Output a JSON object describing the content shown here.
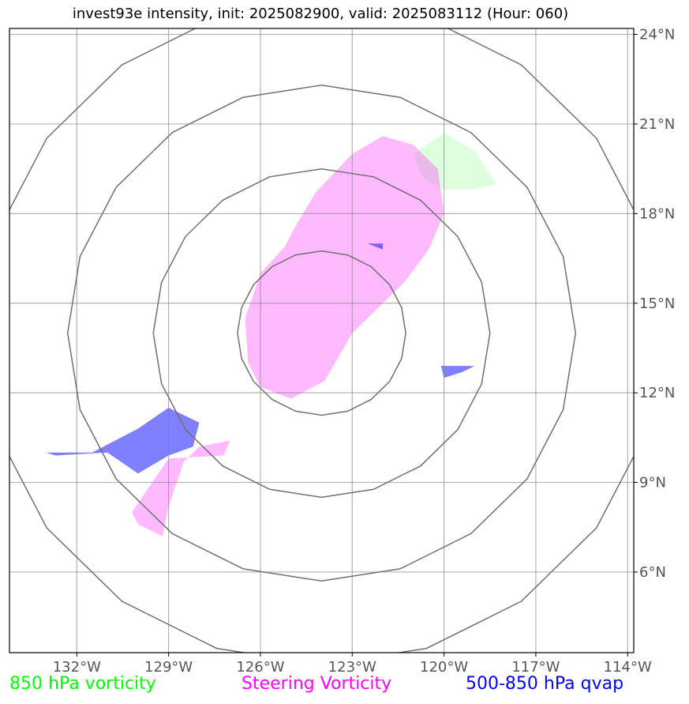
{
  "title": "invest93e intensity, init: 2025082900, valid: 2025083112 (Hour: 060)",
  "map": {
    "lon_range": [
      -134.2,
      -113.8
    ],
    "lat_range": [
      3.3,
      24.2
    ],
    "lon_ticks": [
      {
        "value": -132,
        "label": "132°W"
      },
      {
        "value": -129,
        "label": "129°W"
      },
      {
        "value": -126,
        "label": "126°W"
      },
      {
        "value": -123,
        "label": "123°W"
      },
      {
        "value": -120,
        "label": "120°W"
      },
      {
        "value": -117,
        "label": "117°W"
      },
      {
        "value": -114,
        "label": "114°W"
      }
    ],
    "lat_ticks": [
      {
        "value": 24,
        "label": "24°N"
      },
      {
        "value": 21,
        "label": "21°N"
      },
      {
        "value": 18,
        "label": "18°N"
      },
      {
        "value": 15,
        "label": "15°N"
      },
      {
        "value": 12,
        "label": "12°N"
      },
      {
        "value": 9,
        "label": "9°N"
      },
      {
        "value": 6,
        "label": "6°N"
      }
    ],
    "range_rings_center": {
      "lon": -124,
      "lat": 14
    },
    "range_ring_radii_deg": [
      2.75,
      5.5,
      8.3,
      11.1
    ],
    "fields": [
      {
        "name": "850 hPa vorticity",
        "color": "#c8ffc8",
        "polygons": [
          [
            [
              -120.0,
              20.7
            ],
            [
              -119.0,
              20.1
            ],
            [
              -118.3,
              19.0
            ],
            [
              -119.0,
              18.8
            ],
            [
              -120.0,
              18.8
            ],
            [
              -120.7,
              19.2
            ],
            [
              -121.0,
              20.0
            ]
          ],
          [
            [
              -119.1,
              12.1
            ],
            [
              -118.9,
              12.1
            ],
            [
              -119.0,
              12.0
            ]
          ]
        ]
      },
      {
        "name": "Steering Vorticity",
        "color": "#ff00ff",
        "polygons": [
          [
            [
              -122.0,
              20.6
            ],
            [
              -121.0,
              20.3
            ],
            [
              -120.2,
              19.5
            ],
            [
              -120.0,
              18.0
            ],
            [
              -120.5,
              16.8
            ],
            [
              -121.3,
              15.7
            ],
            [
              -122.0,
              15.0
            ],
            [
              -123.0,
              14.0
            ],
            [
              -123.9,
              12.4
            ],
            [
              -125.0,
              11.8
            ],
            [
              -126.0,
              12.2
            ],
            [
              -126.4,
              13.0
            ],
            [
              -126.5,
              14.5
            ],
            [
              -126.0,
              16.0
            ],
            [
              -125.2,
              16.9
            ],
            [
              -124.9,
              17.5
            ],
            [
              -124.2,
              18.7
            ],
            [
              -123.0,
              20.0
            ]
          ],
          [
            [
              -127.0,
              10.4
            ],
            [
              -128.0,
              10.2
            ],
            [
              -128.5,
              9.7
            ],
            [
              -129.0,
              8.2
            ],
            [
              -129.2,
              7.2
            ],
            [
              -130.0,
              7.6
            ],
            [
              -130.2,
              8.0
            ],
            [
              -129.0,
              9.8
            ],
            [
              -127.2,
              9.9
            ]
          ]
        ]
      },
      {
        "name": "500-850 hPa qvap",
        "color": "#0000ff",
        "polygons": [
          [
            [
              -128.0,
              11.0
            ],
            [
              -128.2,
              10.2
            ],
            [
              -129.0,
              9.9
            ],
            [
              -130.0,
              9.3
            ],
            [
              -131.0,
              10.0
            ],
            [
              -132.7,
              9.9
            ],
            [
              -133.0,
              10.0
            ],
            [
              -131.5,
              10.0
            ],
            [
              -130.0,
              10.8
            ],
            [
              -129.0,
              11.5
            ]
          ],
          [
            [
              -119.0,
              12.9
            ],
            [
              -119.4,
              12.7
            ],
            [
              -120.0,
              12.5
            ],
            [
              -120.1,
              12.9
            ]
          ],
          [
            [
              -122.0,
              17.0
            ],
            [
              -122.0,
              16.8
            ],
            [
              -122.5,
              17.0
            ]
          ]
        ]
      }
    ]
  },
  "legend": [
    {
      "label": "850 hPa vorticity",
      "color": "#00ff00"
    },
    {
      "label": "Steering Vorticity",
      "color": "#ff00ff"
    },
    {
      "label": "500-850 hPa qvap",
      "color": "#0000ff"
    }
  ]
}
